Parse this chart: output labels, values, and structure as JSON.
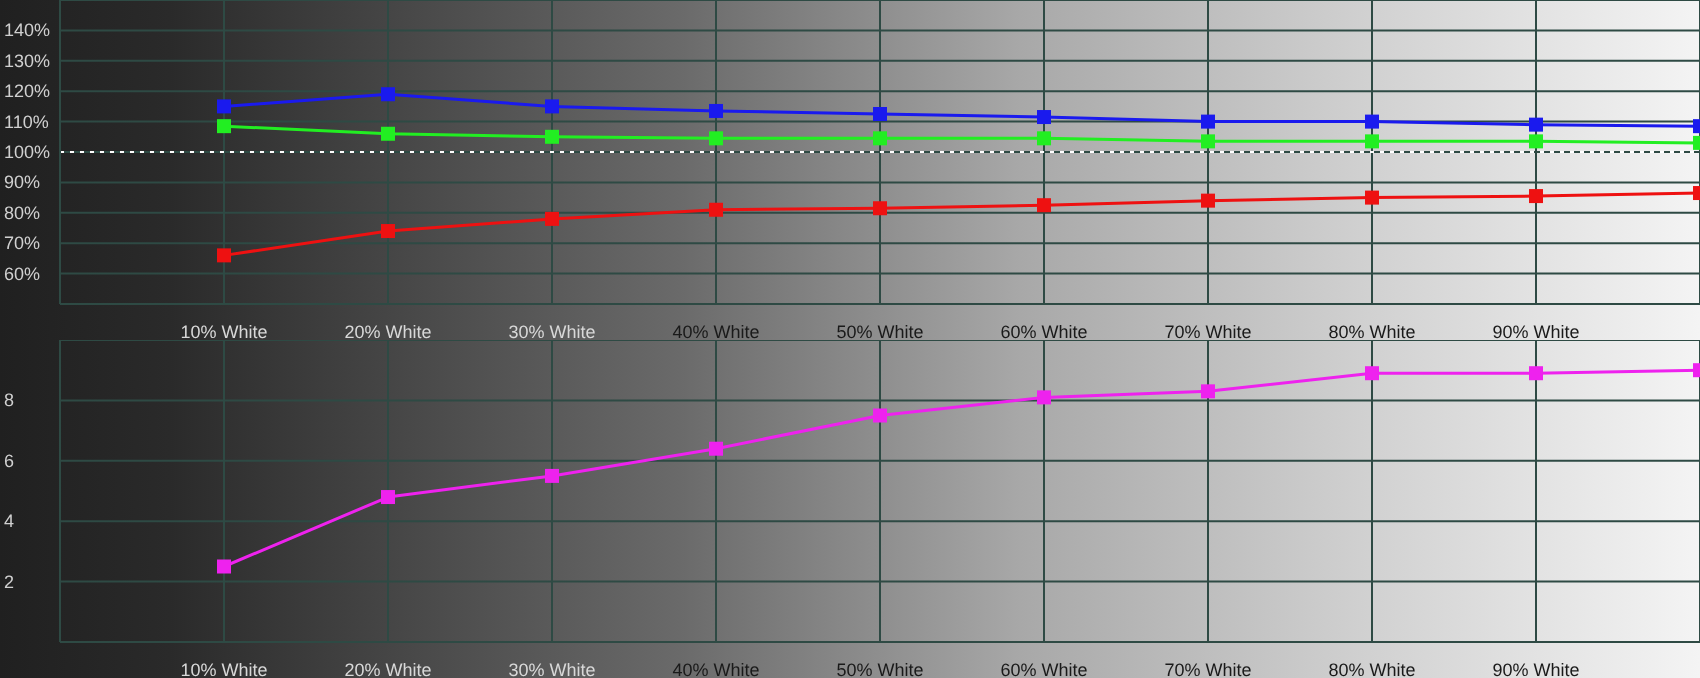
{
  "chart_data": [
    {
      "type": "line",
      "categories": [
        "10% White",
        "20% White",
        "30% White",
        "40% White",
        "50% White",
        "60% White",
        "70% White",
        "80% White",
        "90% White",
        null
      ],
      "series": [
        {
          "color": "#1a1aee",
          "values": [
            115,
            119,
            115,
            113.5,
            112.5,
            111.5,
            110,
            110,
            109,
            108.5
          ]
        },
        {
          "color": "#22ee22",
          "values": [
            108.5,
            106,
            105,
            104.5,
            104.5,
            104.5,
            103.5,
            103.5,
            103.5,
            103
          ]
        },
        {
          "color": "#ee1111",
          "values": [
            66,
            74,
            78,
            81,
            81.5,
            82.5,
            84,
            85,
            85.5,
            86.5
          ]
        }
      ],
      "ylim": [
        50,
        150
      ],
      "yticks": [
        {
          "value": 60,
          "label": "60%"
        },
        {
          "value": 70,
          "label": "70%"
        },
        {
          "value": 80,
          "label": "80%"
        },
        {
          "value": 90,
          "label": "90%"
        },
        {
          "value": 100,
          "label": "100%"
        },
        {
          "value": 110,
          "label": "110%"
        },
        {
          "value": 120,
          "label": "120%"
        },
        {
          "value": 130,
          "label": "130%"
        },
        {
          "value": 140,
          "label": "140%"
        }
      ],
      "ref_lines": [
        {
          "axis": "y",
          "value": 100,
          "color": "#ffffff",
          "line_style": "dotted"
        }
      ],
      "grid": true,
      "marker": "square",
      "line_style": "solid"
    },
    {
      "type": "line",
      "categories": [
        "10% White",
        "20% White",
        "30% White",
        "40% White",
        "50% White",
        "60% White",
        "70% White",
        "80% White",
        "90% White",
        null
      ],
      "series": [
        {
          "color": "#ee22ee",
          "values": [
            2.5,
            4.8,
            5.5,
            6.4,
            7.5,
            8.1,
            8.3,
            8.9,
            8.9,
            9.0
          ]
        }
      ],
      "ylim": [
        0,
        10
      ],
      "yticks": [
        2,
        4,
        6,
        8
      ],
      "grid": true,
      "marker": "square",
      "line_style": "solid"
    }
  ]
}
